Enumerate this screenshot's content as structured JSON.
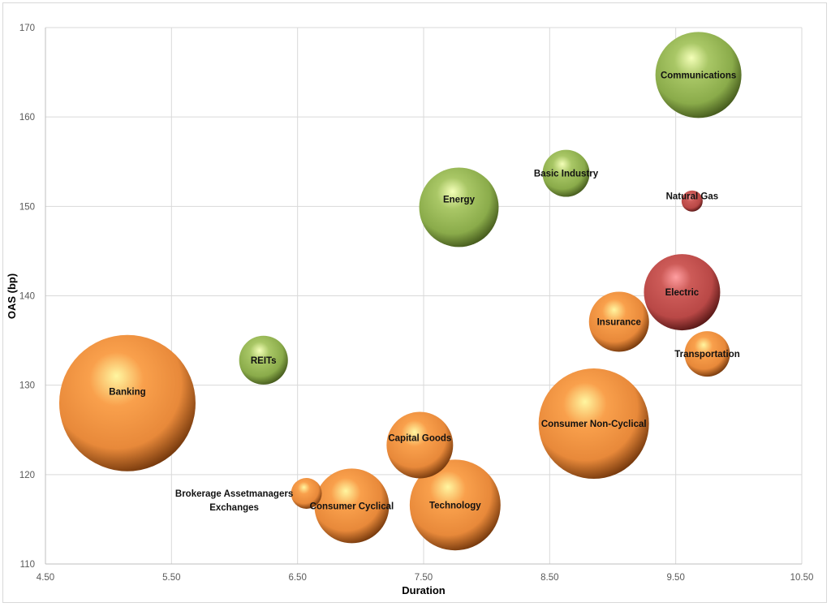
{
  "chart_data": {
    "type": "bubble",
    "title": "",
    "xlabel": "Duration",
    "ylabel": "OAS (bp)",
    "xlim": [
      4.5,
      10.5
    ],
    "ylim": [
      110,
      170
    ],
    "x_ticks": [
      "4.50",
      "5.50",
      "6.50",
      "7.50",
      "8.50",
      "9.50",
      "10.50"
    ],
    "x_tick_values": [
      4.5,
      5.5,
      6.5,
      7.5,
      8.5,
      9.5,
      10.5
    ],
    "y_ticks": [
      "110",
      "120",
      "130",
      "140",
      "150",
      "160",
      "170"
    ],
    "y_tick_values": [
      110,
      120,
      130,
      140,
      150,
      160,
      170
    ],
    "grid": true,
    "legend": "none",
    "size_note": "relative bubble size (area), largest = 100",
    "colors": {
      "green": "#9bbb59",
      "orange": "#f79646",
      "red": "#c0504d"
    },
    "series": [
      {
        "name": "Communications",
        "x": 9.68,
        "y": 164.7,
        "size": 39.8,
        "color": "green",
        "label_pos": "center"
      },
      {
        "name": "Basic Industry",
        "x": 8.63,
        "y": 153.7,
        "size": 11.9,
        "color": "green",
        "label_pos": "center"
      },
      {
        "name": "Natural Gas",
        "x": 9.63,
        "y": 150.6,
        "size": 2.4,
        "color": "red",
        "label_pos": "above"
      },
      {
        "name": "Energy",
        "x": 7.78,
        "y": 149.9,
        "size": 34.0,
        "color": "green",
        "label_pos": "above-center"
      },
      {
        "name": "Electric",
        "x": 9.55,
        "y": 140.4,
        "size": 31.3,
        "color": "red",
        "label_pos": "center"
      },
      {
        "name": "Insurance",
        "x": 9.05,
        "y": 137.1,
        "size": 19.4,
        "color": "orange",
        "label_pos": "center"
      },
      {
        "name": "Transportation",
        "x": 9.75,
        "y": 133.5,
        "size": 11.1,
        "color": "orange",
        "label_pos": "center"
      },
      {
        "name": "REITs",
        "x": 6.23,
        "y": 132.8,
        "size": 12.8,
        "color": "green",
        "label_pos": "center"
      },
      {
        "name": "Banking",
        "x": 5.15,
        "y": 128.0,
        "size": 100,
        "color": "orange",
        "label_pos": "above-center"
      },
      {
        "name": "Consumer Non-Cyclical",
        "x": 8.85,
        "y": 125.7,
        "size": 65.5,
        "color": "orange",
        "label_pos": "center"
      },
      {
        "name": "Capital Goods",
        "x": 7.47,
        "y": 123.3,
        "size": 23.8,
        "color": "orange",
        "label_pos": "above-center"
      },
      {
        "name": "Brokerage Assetmanagers Exchanges",
        "label_lines": [
          "Brokerage Assetmanagers",
          "Exchanges"
        ],
        "x": 6.57,
        "y": 117.9,
        "size": 5.1,
        "color": "orange",
        "label_pos": "left"
      },
      {
        "name": "Consumer Cyclical",
        "x": 6.93,
        "y": 116.5,
        "size": 30.0,
        "color": "orange",
        "label_pos": "center"
      },
      {
        "name": "Technology",
        "x": 7.75,
        "y": 116.6,
        "size": 44.4,
        "color": "orange",
        "label_pos": "center"
      }
    ]
  }
}
